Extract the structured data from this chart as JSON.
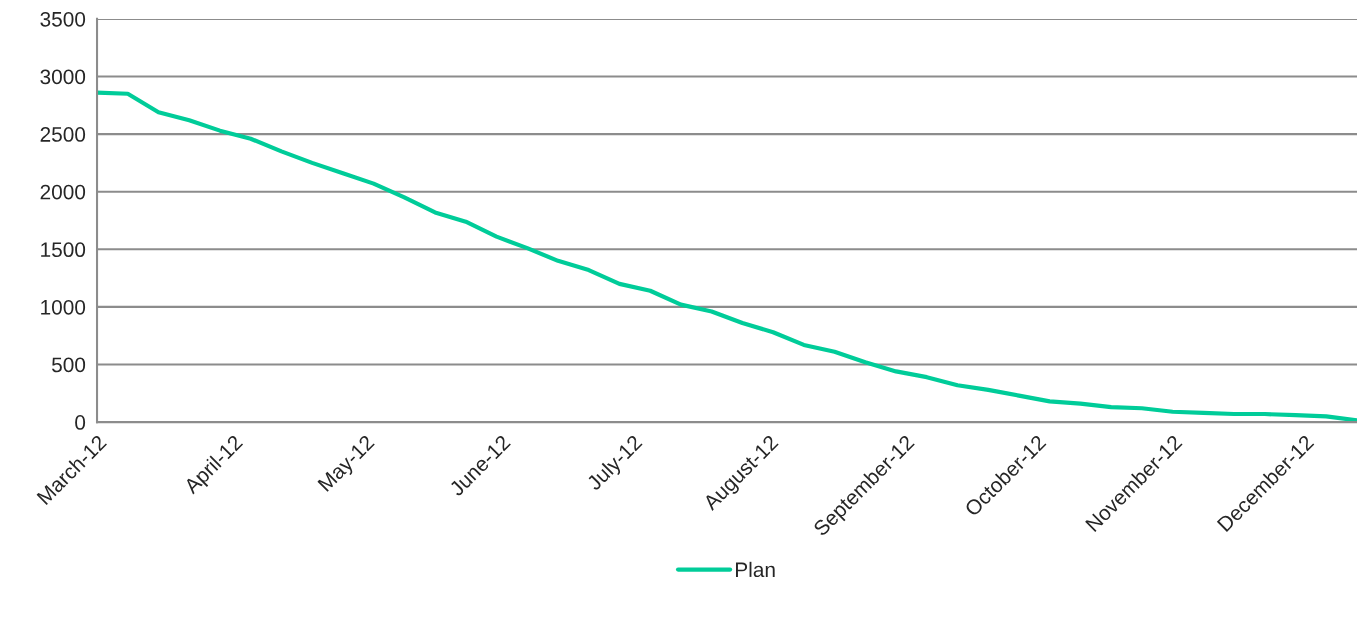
{
  "chart_data": {
    "type": "line",
    "x": [
      "2012-03-01",
      "2012-03-08",
      "2012-03-15",
      "2012-03-22",
      "2012-03-29",
      "2012-04-05",
      "2012-04-12",
      "2012-04-19",
      "2012-04-26",
      "2012-05-03",
      "2012-05-10",
      "2012-05-17",
      "2012-05-24",
      "2012-05-31",
      "2012-06-07",
      "2012-06-14",
      "2012-06-21",
      "2012-06-28",
      "2012-07-05",
      "2012-07-12",
      "2012-07-19",
      "2012-07-26",
      "2012-08-02",
      "2012-08-09",
      "2012-08-16",
      "2012-08-23",
      "2012-08-30",
      "2012-09-06",
      "2012-09-13",
      "2012-09-20",
      "2012-09-27",
      "2012-10-04",
      "2012-10-11",
      "2012-10-18",
      "2012-10-25",
      "2012-11-01",
      "2012-11-08",
      "2012-11-15",
      "2012-11-22",
      "2012-11-29",
      "2012-12-06",
      "2012-12-13"
    ],
    "series": [
      {
        "name": "Plan",
        "color": "#00cc99",
        "values": [
          2860,
          2850,
          2690,
          2620,
          2530,
          2460,
          2350,
          2250,
          2160,
          2070,
          1950,
          1820,
          1740,
          1610,
          1510,
          1400,
          1320,
          1200,
          1140,
          1020,
          960,
          860,
          780,
          670,
          610,
          520,
          440,
          390,
          320,
          280,
          230,
          180,
          160,
          130,
          120,
          90,
          80,
          70,
          70,
          60,
          50,
          15
        ]
      }
    ],
    "xlim": [
      "2012-03-01",
      "2012-12-13"
    ],
    "xticks": [
      {
        "value": "2012-03-01",
        "label": "March-12"
      },
      {
        "value": "2012-04-01",
        "label": "April-12"
      },
      {
        "value": "2012-05-01",
        "label": "May-12"
      },
      {
        "value": "2012-06-01",
        "label": "June-12"
      },
      {
        "value": "2012-07-01",
        "label": "July-12"
      },
      {
        "value": "2012-08-01",
        "label": "August-12"
      },
      {
        "value": "2012-09-01",
        "label": "September-12"
      },
      {
        "value": "2012-10-01",
        "label": "October-12"
      },
      {
        "value": "2012-11-01",
        "label": "November-12"
      },
      {
        "value": "2012-12-01",
        "label": "December-12"
      }
    ],
    "ylim": [
      0,
      3500
    ],
    "yticks": [
      0,
      500,
      1000,
      1500,
      2000,
      2500,
      3000,
      3500
    ],
    "grid": "y",
    "legend": "bottom",
    "marker": "none",
    "line_style": "solid"
  }
}
